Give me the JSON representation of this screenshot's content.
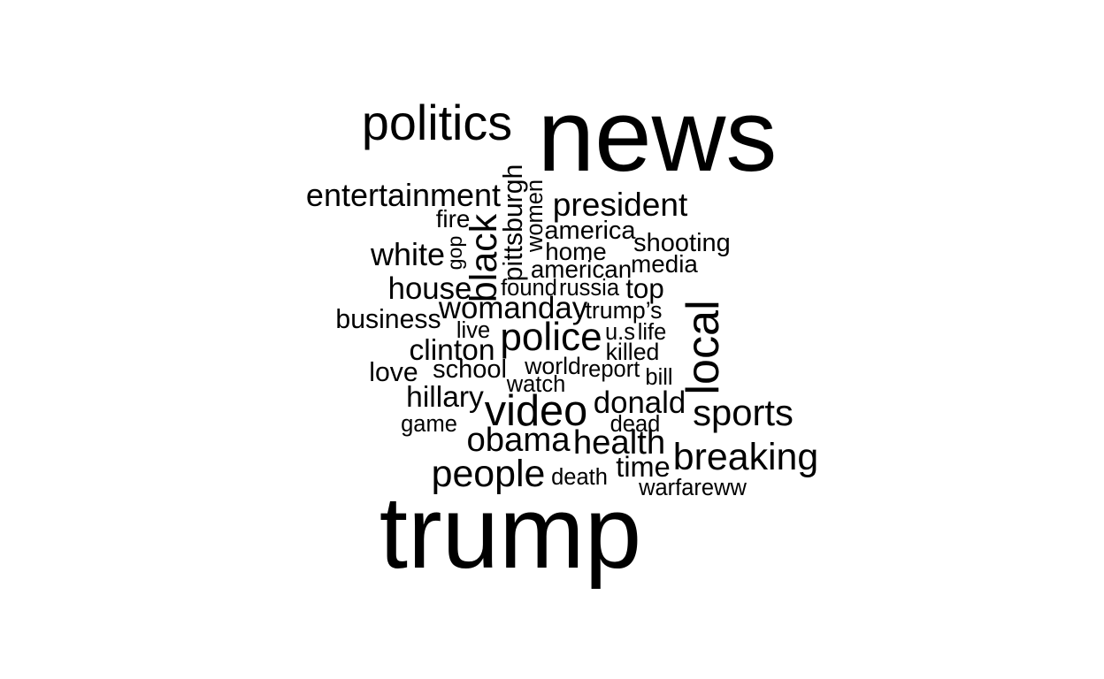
{
  "chart_data": {
    "type": "wordcloud",
    "color": "#000000",
    "words": [
      {
        "text": "news",
        "weight": 100
      },
      {
        "text": "trump",
        "weight": 100
      },
      {
        "text": "politics",
        "weight": 48
      },
      {
        "text": "local",
        "weight": 45
      },
      {
        "text": "video",
        "weight": 42
      },
      {
        "text": "police",
        "weight": 38
      },
      {
        "text": "black",
        "weight": 37
      },
      {
        "text": "breaking",
        "weight": 37
      },
      {
        "text": "people",
        "weight": 37
      },
      {
        "text": "sports",
        "weight": 36
      },
      {
        "text": "health",
        "weight": 33
      },
      {
        "text": "obama",
        "weight": 33
      },
      {
        "text": "president",
        "weight": 32
      },
      {
        "text": "entertainment",
        "weight": 31
      },
      {
        "text": "white",
        "weight": 31
      },
      {
        "text": "womanday",
        "weight": 30
      },
      {
        "text": "house",
        "weight": 30
      },
      {
        "text": "donald",
        "weight": 30
      },
      {
        "text": "clinton",
        "weight": 29
      },
      {
        "text": "hillary",
        "weight": 29
      },
      {
        "text": "time",
        "weight": 28
      },
      {
        "text": "top",
        "weight": 27
      },
      {
        "text": "pittsburgh",
        "weight": 26
      },
      {
        "text": "love",
        "weight": 26
      },
      {
        "text": "business",
        "weight": 26
      },
      {
        "text": "school",
        "weight": 25
      },
      {
        "text": "america",
        "weight": 25
      },
      {
        "text": "shooting",
        "weight": 25
      },
      {
        "text": "fire",
        "weight": 24
      },
      {
        "text": "home",
        "weight": 24
      },
      {
        "text": "american",
        "weight": 24
      },
      {
        "text": "media",
        "weight": 24
      },
      {
        "text": "trump’s",
        "weight": 23
      },
      {
        "text": "killed",
        "weight": 23
      },
      {
        "text": "world",
        "weight": 23
      },
      {
        "text": "women",
        "weight": 22
      },
      {
        "text": "found",
        "weight": 22
      },
      {
        "text": "russia",
        "weight": 22
      },
      {
        "text": "live",
        "weight": 22
      },
      {
        "text": "u.s",
        "weight": 22
      },
      {
        "text": "life",
        "weight": 22
      },
      {
        "text": "report",
        "weight": 22
      },
      {
        "text": "watch",
        "weight": 22
      },
      {
        "text": "bill",
        "weight": 22
      },
      {
        "text": "game",
        "weight": 22
      },
      {
        "text": "dead",
        "weight": 22
      },
      {
        "text": "death",
        "weight": 22
      },
      {
        "text": "warfareww",
        "weight": 22
      },
      {
        "text": "gop",
        "weight": 20
      }
    ]
  }
}
